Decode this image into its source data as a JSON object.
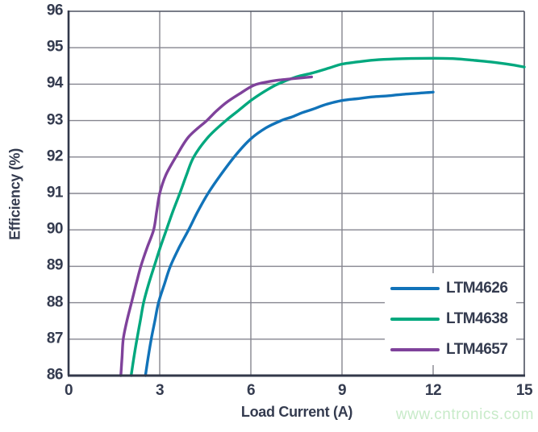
{
  "chart_data": {
    "type": "line",
    "title": "",
    "xlabel": "Load Current (A)",
    "ylabel": "Efficiency (%)",
    "xlim": [
      0,
      15
    ],
    "ylim": [
      86,
      96
    ],
    "x_ticks": [
      0,
      3,
      6,
      9,
      12,
      15
    ],
    "y_ticks": [
      86,
      87,
      88,
      89,
      90,
      91,
      92,
      93,
      94,
      95,
      96
    ],
    "grid": true,
    "legend": {
      "position": "inside-bottom-right"
    },
    "series": [
      {
        "name": "LTM4626",
        "color": "#1173b9",
        "points": [
          [
            2.53,
            86
          ],
          [
            2.62,
            86.5
          ],
          [
            2.72,
            87
          ],
          [
            2.84,
            87.5
          ],
          [
            2.96,
            88
          ],
          [
            3.15,
            88.5
          ],
          [
            3.35,
            89
          ],
          [
            3.63,
            89.5
          ],
          [
            3.95,
            90
          ],
          [
            4.25,
            90.5
          ],
          [
            4.59,
            91
          ],
          [
            5.0,
            91.5
          ],
          [
            5.5,
            92.05
          ],
          [
            6.0,
            92.5
          ],
          [
            6.5,
            92.8
          ],
          [
            7.0,
            93.0
          ],
          [
            7.35,
            93.1
          ],
          [
            7.7,
            93.22
          ],
          [
            8.0,
            93.3
          ],
          [
            8.5,
            93.45
          ],
          [
            9.0,
            93.55
          ],
          [
            9.5,
            93.6
          ],
          [
            10.0,
            93.65
          ],
          [
            10.5,
            93.68
          ],
          [
            11.0,
            93.72
          ],
          [
            11.5,
            93.75
          ],
          [
            12.0,
            93.78
          ]
        ]
      },
      {
        "name": "LTM4638",
        "color": "#00a87e",
        "points": [
          [
            2.06,
            86
          ],
          [
            2.15,
            86.5
          ],
          [
            2.25,
            87
          ],
          [
            2.36,
            87.5
          ],
          [
            2.47,
            88
          ],
          [
            2.63,
            88.5
          ],
          [
            2.82,
            89
          ],
          [
            3.01,
            89.5
          ],
          [
            3.22,
            90
          ],
          [
            3.43,
            90.5
          ],
          [
            3.66,
            91
          ],
          [
            3.88,
            91.5
          ],
          [
            4.12,
            92
          ],
          [
            4.6,
            92.55
          ],
          [
            5.18,
            93
          ],
          [
            5.6,
            93.28
          ],
          [
            6.0,
            93.55
          ],
          [
            6.45,
            93.8
          ],
          [
            6.88,
            94
          ],
          [
            7.5,
            94.2
          ],
          [
            8.0,
            94.3
          ],
          [
            8.6,
            94.45
          ],
          [
            9.0,
            94.55
          ],
          [
            9.6,
            94.62
          ],
          [
            10.2,
            94.67
          ],
          [
            11.0,
            94.7
          ],
          [
            12.0,
            94.71
          ],
          [
            12.7,
            94.7
          ],
          [
            13.4,
            94.65
          ],
          [
            14.0,
            94.6
          ],
          [
            14.6,
            94.53
          ],
          [
            15.0,
            94.47
          ]
        ]
      },
      {
        "name": "LTM4657",
        "color": "#7f429b",
        "points": [
          [
            1.72,
            86
          ],
          [
            1.76,
            86.5
          ],
          [
            1.8,
            87
          ],
          [
            1.92,
            87.5
          ],
          [
            2.07,
            88
          ],
          [
            2.22,
            88.5
          ],
          [
            2.38,
            89
          ],
          [
            2.58,
            89.5
          ],
          [
            2.8,
            90
          ],
          [
            2.9,
            90.5
          ],
          [
            3.0,
            91
          ],
          [
            3.2,
            91.5
          ],
          [
            3.53,
            92
          ],
          [
            3.95,
            92.55
          ],
          [
            4.55,
            93
          ],
          [
            4.85,
            93.25
          ],
          [
            5.2,
            93.5
          ],
          [
            5.6,
            93.72
          ],
          [
            6.1,
            93.97
          ],
          [
            6.6,
            94.07
          ],
          [
            7.0,
            94.12
          ],
          [
            7.5,
            94.16
          ],
          [
            8.0,
            94.2
          ]
        ]
      }
    ]
  },
  "watermark": {
    "text": "www.cntronics.com"
  },
  "colors": {
    "text": "#343b4f",
    "grid": "#85858f",
    "border_light": "#4d5260",
    "axis_dark": "#32384a",
    "watermark": "#c8ebc9",
    "background": "#ffffff"
  }
}
